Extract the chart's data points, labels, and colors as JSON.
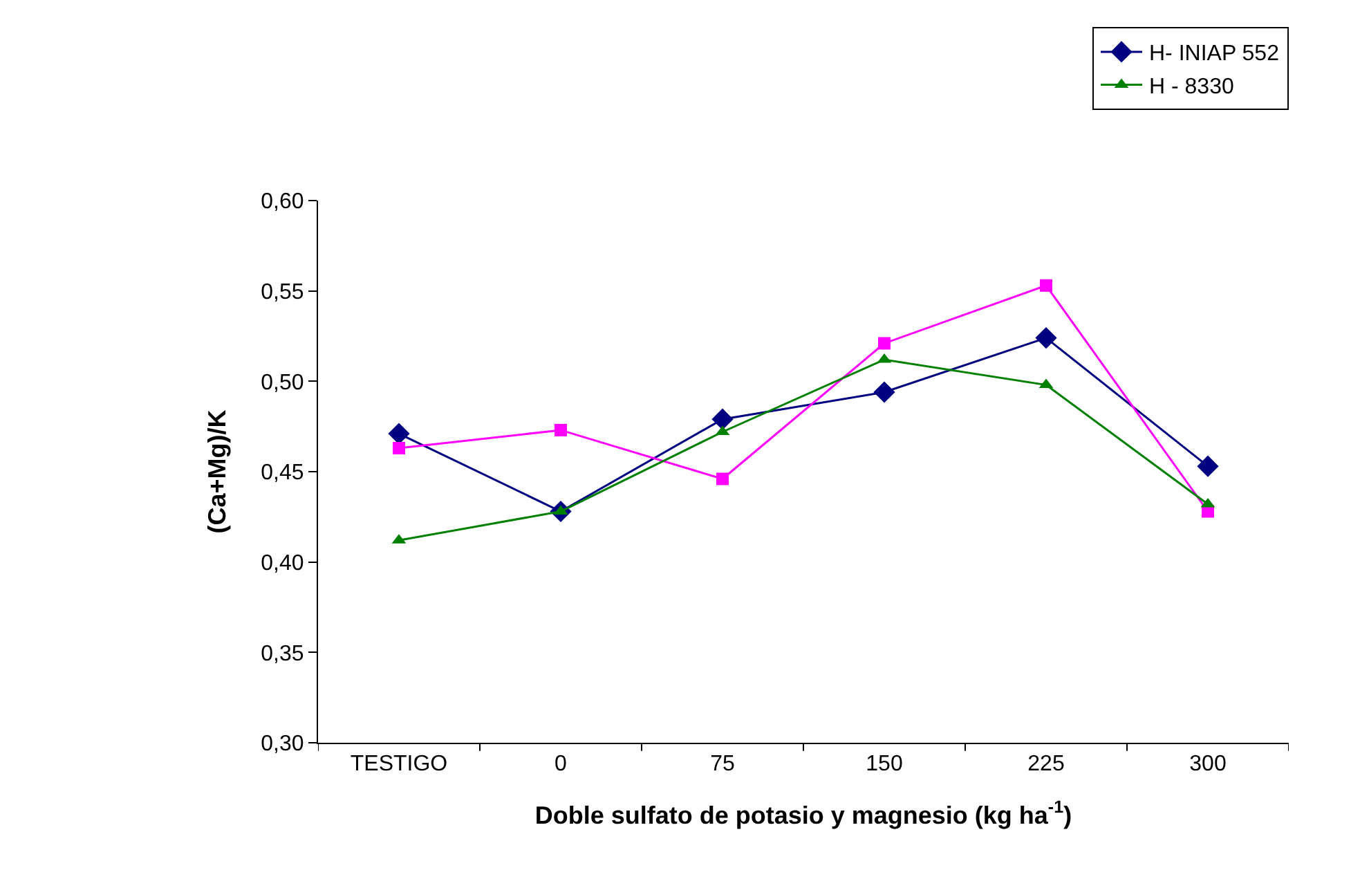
{
  "chart_data": {
    "type": "line",
    "xlabel": "Doble sulfato de potasio y magnesio (kg ha$^{-1}$)",
    "ylabel": "(Ca+Mg)/K",
    "categories": [
      "TESTIGO",
      "0",
      "75",
      "150",
      "225",
      "300"
    ],
    "series": [
      {
        "name": "H- INIAP 552",
        "color": "#000080",
        "marker": "diamond",
        "values": [
          0.471,
          0.428,
          0.479,
          0.494,
          0.524,
          0.453
        ]
      },
      {
        "color": "#ff00ff",
        "marker": "square",
        "values": [
          0.463,
          0.473,
          0.446,
          0.521,
          0.553,
          0.428
        ]
      },
      {
        "name": "H - 8330",
        "color": "#008000",
        "marker": "triangle",
        "values": [
          0.412,
          0.428,
          0.472,
          0.512,
          0.498,
          0.432
        ]
      }
    ],
    "ylim": [
      0.3,
      0.6
    ],
    "yticks": [
      {
        "value": 0.3,
        "label": "0,30"
      },
      {
        "value": 0.35,
        "label": "0,35"
      },
      {
        "value": 0.4,
        "label": "0,40"
      },
      {
        "value": 0.45,
        "label": "0,45"
      },
      {
        "value": 0.5,
        "label": "0,50"
      },
      {
        "value": 0.55,
        "label": "0,55"
      },
      {
        "value": 0.6,
        "label": "0,60"
      }
    ],
    "grid": false,
    "legend": "top right"
  }
}
